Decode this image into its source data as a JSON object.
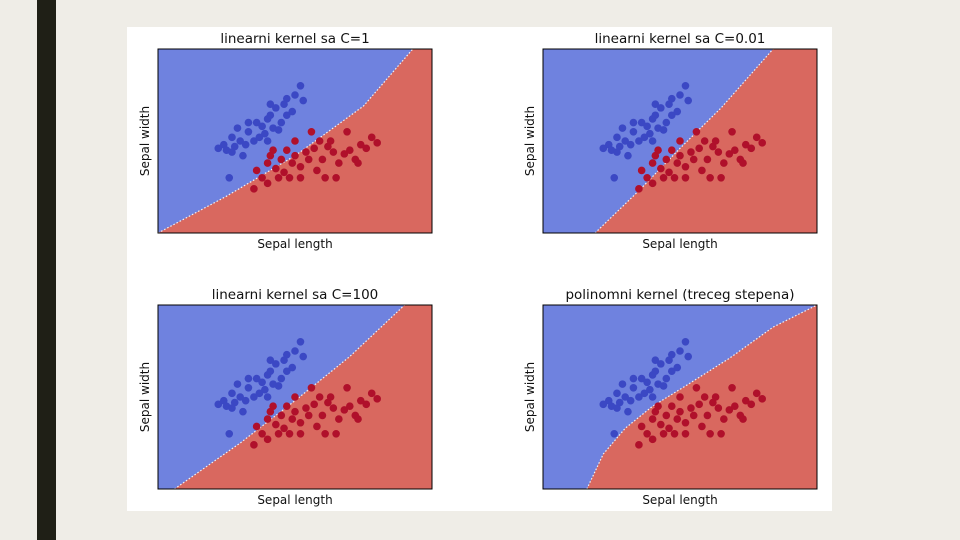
{
  "colors": {
    "class_0_region": "#6f82df",
    "class_1_region": "#d9685f",
    "class_0_point": "#3b48c4",
    "class_1_point": "#b0102b",
    "frame": "#000000"
  },
  "chart_data": [
    {
      "type": "scatter",
      "title": "linearni kernel sa C=1",
      "xlabel": "Sepal length",
      "ylabel": "Sepal width",
      "xlim": [
        0,
        1
      ],
      "ylim": [
        0,
        1
      ],
      "grid": false,
      "decision_boundary": [
        [
          0.0,
          0.0
        ],
        [
          0.25,
          0.2
        ],
        [
          0.5,
          0.42
        ],
        [
          0.75,
          0.69
        ],
        [
          0.93,
          1.0
        ]
      ]
    },
    {
      "type": "scatter",
      "title": "linearni kernel sa C=0.01",
      "xlabel": "Sepal length",
      "ylabel": "Sepal width",
      "xlim": [
        0,
        1
      ],
      "ylim": [
        0,
        1
      ],
      "grid": false,
      "decision_boundary": [
        [
          0.19,
          0.0
        ],
        [
          0.35,
          0.23
        ],
        [
          0.5,
          0.46
        ],
        [
          0.65,
          0.68
        ],
        [
          0.84,
          1.0
        ]
      ]
    },
    {
      "type": "scatter",
      "title": "linearni kernel sa C=100",
      "xlabel": "Sepal length",
      "ylabel": "Sepal width",
      "xlim": [
        0,
        1
      ],
      "ylim": [
        0,
        1
      ],
      "grid": false,
      "decision_boundary": [
        [
          0.06,
          0.0
        ],
        [
          0.3,
          0.25
        ],
        [
          0.5,
          0.48
        ],
        [
          0.7,
          0.72
        ],
        [
          0.9,
          1.0
        ]
      ]
    },
    {
      "type": "scatter",
      "title": "polinomni kernel (treceg stepena)",
      "xlabel": "Sepal length",
      "ylabel": "Sepal width",
      "xlim": [
        0,
        1
      ],
      "ylim": [
        0,
        1
      ],
      "grid": false,
      "decision_boundary": [
        [
          0.16,
          0.0
        ],
        [
          0.22,
          0.19
        ],
        [
          0.3,
          0.33
        ],
        [
          0.4,
          0.45
        ],
        [
          0.52,
          0.56
        ],
        [
          0.68,
          0.71
        ],
        [
          0.84,
          0.88
        ],
        [
          1.0,
          1.0
        ]
      ]
    }
  ],
  "points": {
    "class_0": [
      [
        0.22,
        0.46
      ],
      [
        0.24,
        0.48
      ],
      [
        0.25,
        0.45
      ],
      [
        0.28,
        0.47
      ],
      [
        0.27,
        0.52
      ],
      [
        0.3,
        0.5
      ],
      [
        0.32,
        0.48
      ],
      [
        0.33,
        0.55
      ],
      [
        0.35,
        0.5
      ],
      [
        0.36,
        0.6
      ],
      [
        0.38,
        0.58
      ],
      [
        0.39,
        0.54
      ],
      [
        0.37,
        0.52
      ],
      [
        0.4,
        0.62
      ],
      [
        0.42,
        0.57
      ],
      [
        0.41,
        0.7
      ],
      [
        0.43,
        0.68
      ],
      [
        0.45,
        0.6
      ],
      [
        0.47,
        0.64
      ],
      [
        0.49,
        0.66
      ],
      [
        0.5,
        0.75
      ],
      [
        0.52,
        0.8
      ],
      [
        0.47,
        0.73
      ],
      [
        0.41,
        0.64
      ],
      [
        0.29,
        0.57
      ],
      [
        0.27,
        0.44
      ],
      [
        0.31,
        0.42
      ],
      [
        0.26,
        0.3
      ],
      [
        0.33,
        0.6
      ],
      [
        0.44,
        0.56
      ],
      [
        0.4,
        0.5
      ],
      [
        0.46,
        0.7
      ],
      [
        0.53,
        0.72
      ]
    ],
    "class_1": [
      [
        0.36,
        0.34
      ],
      [
        0.38,
        0.3
      ],
      [
        0.4,
        0.38
      ],
      [
        0.41,
        0.42
      ],
      [
        0.43,
        0.35
      ],
      [
        0.45,
        0.4
      ],
      [
        0.46,
        0.33
      ],
      [
        0.47,
        0.45
      ],
      [
        0.49,
        0.38
      ],
      [
        0.5,
        0.42
      ],
      [
        0.52,
        0.36
      ],
      [
        0.54,
        0.44
      ],
      [
        0.55,
        0.4
      ],
      [
        0.57,
        0.46
      ],
      [
        0.59,
        0.5
      ],
      [
        0.6,
        0.4
      ],
      [
        0.62,
        0.47
      ],
      [
        0.64,
        0.44
      ],
      [
        0.66,
        0.38
      ],
      [
        0.68,
        0.43
      ],
      [
        0.7,
        0.45
      ],
      [
        0.72,
        0.4
      ],
      [
        0.74,
        0.48
      ],
      [
        0.76,
        0.46
      ],
      [
        0.78,
        0.52
      ],
      [
        0.8,
        0.49
      ],
      [
        0.44,
        0.3
      ],
      [
        0.48,
        0.3
      ],
      [
        0.42,
        0.45
      ],
      [
        0.58,
        0.34
      ],
      [
        0.61,
        0.3
      ],
      [
        0.65,
        0.3
      ],
      [
        0.35,
        0.24
      ],
      [
        0.52,
        0.3
      ],
      [
        0.63,
        0.5
      ],
      [
        0.69,
        0.55
      ],
      [
        0.56,
        0.55
      ],
      [
        0.73,
        0.38
      ],
      [
        0.5,
        0.5
      ],
      [
        0.4,
        0.27
      ]
    ]
  }
}
